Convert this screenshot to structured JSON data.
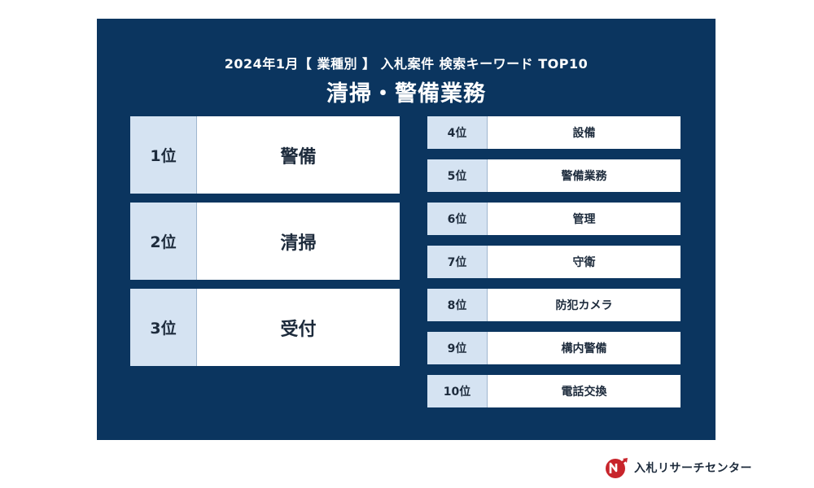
{
  "header": {
    "title_line1": "2024年1月【 業種別 】 入札案件 検索キーワード TOP10",
    "title_line2": "清掃・警備業務"
  },
  "top_rankings": [
    {
      "rank": "1位",
      "keyword": "警備"
    },
    {
      "rank": "2位",
      "keyword": "清掃"
    },
    {
      "rank": "3位",
      "keyword": "受付"
    }
  ],
  "other_rankings": [
    {
      "rank": "4位",
      "keyword": "設備"
    },
    {
      "rank": "5位",
      "keyword": "警備業務"
    },
    {
      "rank": "6位",
      "keyword": "管理"
    },
    {
      "rank": "7位",
      "keyword": "守衛"
    },
    {
      "rank": "8位",
      "keyword": "防犯カメラ"
    },
    {
      "rank": "9位",
      "keyword": "構内警備"
    },
    {
      "rank": "10位",
      "keyword": "電話交換"
    }
  ],
  "brand": {
    "name": "入札リサーチセンター",
    "logo_icon": "nr-logo-icon"
  },
  "colors": {
    "panel_bg": "#0b355f",
    "rank_bg": "#d5e3f2",
    "logo_red": "#c8242b"
  }
}
